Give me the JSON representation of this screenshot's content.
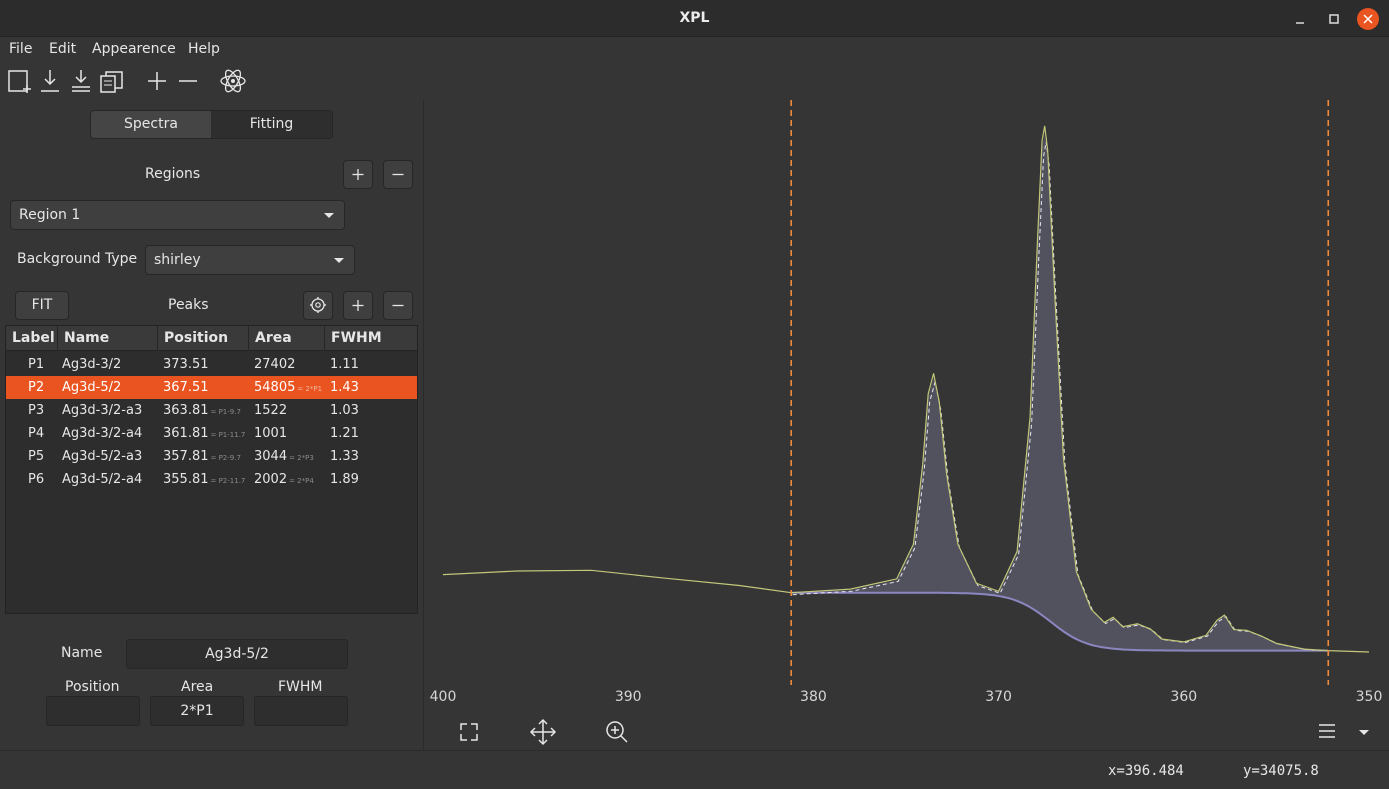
{
  "window": {
    "title": "XPL"
  },
  "menu": [
    "File",
    "Edit",
    "Appearence",
    "Help"
  ],
  "toolbar": {
    "icons": [
      "new-document-icon",
      "import-icon",
      "import-multiple-icon",
      "copy-icon",
      "plus-icon",
      "minus-icon",
      "atom-icon"
    ]
  },
  "tabs": {
    "spectra": "Spectra",
    "fitting": "Fitting"
  },
  "regions": {
    "label": "Regions",
    "selected": "Region 1"
  },
  "background": {
    "label": "Background Type",
    "selected": "shirley"
  },
  "peaks": {
    "fit_label": "FIT",
    "label": "Peaks",
    "columns": [
      "Label",
      "Name",
      "Position",
      "Area",
      "FWHM"
    ],
    "rows": [
      {
        "label": "P1",
        "name": "Ag3d-3/2",
        "position": "373.51",
        "position_expr": "",
        "area": "27402",
        "area_expr": "",
        "fwhm": "1.11"
      },
      {
        "label": "P2",
        "name": "Ag3d-5/2",
        "position": "367.51",
        "position_expr": "",
        "area": "54805",
        "area_expr": "= 2*P1",
        "fwhm": "1.43"
      },
      {
        "label": "P3",
        "name": "Ag3d-3/2-a3",
        "position": "363.81",
        "position_expr": "= P1-9.7",
        "area": "1522",
        "area_expr": "",
        "fwhm": "1.03"
      },
      {
        "label": "P4",
        "name": "Ag3d-3/2-a4",
        "position": "361.81",
        "position_expr": "= P1-11.7",
        "area": "1001",
        "area_expr": "",
        "fwhm": "1.21"
      },
      {
        "label": "P5",
        "name": "Ag3d-5/2-a3",
        "position": "357.81",
        "position_expr": "= P2-9.7",
        "area": "3044",
        "area_expr": "= 2*P3",
        "fwhm": "1.33"
      },
      {
        "label": "P6",
        "name": "Ag3d-5/2-a4",
        "position": "355.81",
        "position_expr": "= P2-11.7",
        "area": "2002",
        "area_expr": "= 2*P4",
        "fwhm": "1.89"
      }
    ],
    "selected_index": 1
  },
  "editor": {
    "name_label": "Name",
    "name_value": "Ag3d-5/2",
    "position_label": "Position",
    "position_value": "",
    "area_label": "Area",
    "area_value": "2*P1",
    "fwhm_label": "FWHM",
    "fwhm_value": ""
  },
  "status": {
    "x": "x=396.484",
    "y": "y=34075.8"
  },
  "colors": {
    "accent": "#e95420",
    "region_line": "#ef8a3c",
    "data_line": "#c3c77a",
    "fit_fill": "#5c5c6e",
    "component": "#8b86c0"
  },
  "chart_data": {
    "type": "line",
    "xlabel": "",
    "ylabel": "",
    "x_reversed": true,
    "xlim": [
      400,
      350
    ],
    "x_ticks": [
      "400",
      "390",
      "380",
      "370",
      "360",
      "350"
    ],
    "region_bounds": [
      381.2,
      352.2
    ],
    "grid": false,
    "series": [
      {
        "x": [
          400.0,
          396.0,
          392.0,
          388.0,
          384.0,
          381.2,
          378.0,
          375.5,
          374.6,
          374.1,
          373.8,
          373.51,
          373.2,
          372.8,
          372.2,
          371.2,
          370.0,
          369.0,
          368.3,
          367.9,
          367.65,
          367.51,
          367.35,
          367.0,
          366.5,
          365.8,
          365.0,
          364.3,
          363.81,
          363.3,
          362.5,
          361.81,
          361.2,
          360.0,
          358.8,
          358.2,
          357.81,
          357.3,
          356.6,
          355.81,
          355.0,
          353.5,
          352.2,
          350.0
        ],
        "y": [
          5900,
          6150,
          6200,
          5650,
          5150,
          4650,
          4900,
          5600,
          8000,
          13500,
          18400,
          19800,
          17800,
          12800,
          8000,
          5300,
          4750,
          7500,
          16800,
          29000,
          35900,
          36900,
          35200,
          26000,
          14000,
          6100,
          3500,
          2600,
          2950,
          2300,
          2500,
          2150,
          1450,
          1250,
          1700,
          2750,
          3100,
          2100,
          2050,
          1650,
          1150,
          750,
          650,
          550
        ]
      }
    ]
  }
}
